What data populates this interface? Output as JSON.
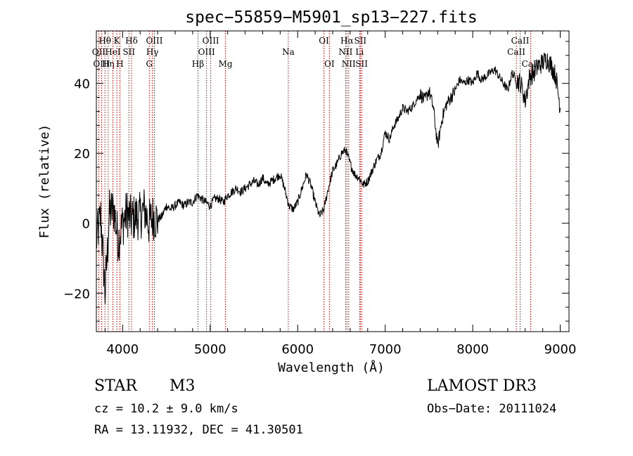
{
  "chart_data": {
    "type": "line",
    "title": "spec−55859−M5901_sp13−227.fits",
    "xlabel": "Wavelength (Å)",
    "ylabel": "Flux (relative)",
    "xlim": [
      3700,
      9100
    ],
    "ylim": [
      -31,
      55
    ],
    "x_ticks": [
      4000,
      5000,
      6000,
      7000,
      8000,
      9000
    ],
    "x_tick_labels": [
      "4000",
      "5000",
      "6000",
      "7000",
      "8000",
      "9000"
    ],
    "y_ticks": [
      -20,
      0,
      20,
      40
    ],
    "y_tick_labels": [
      "−20",
      "0",
      "20",
      "40"
    ],
    "x_minor_step": 200,
    "y_minor_step": 4,
    "series": [
      {
        "name": "spectrum",
        "color": "#000000",
        "x": [
          3700,
          3750,
          3800,
          3850,
          3900,
          3950,
          4000,
          4050,
          4100,
          4150,
          4200,
          4250,
          4300,
          4350,
          4400,
          4450,
          4500,
          4550,
          4600,
          4650,
          4700,
          4750,
          4800,
          4850,
          4900,
          4950,
          5000,
          5050,
          5100,
          5150,
          5200,
          5250,
          5300,
          5350,
          5400,
          5450,
          5500,
          5550,
          5600,
          5650,
          5700,
          5750,
          5800,
          5850,
          5900,
          5950,
          6000,
          6050,
          6100,
          6150,
          6200,
          6250,
          6300,
          6350,
          6400,
          6450,
          6500,
          6550,
          6600,
          6650,
          6700,
          6750,
          6800,
          6850,
          6900,
          6950,
          7000,
          7050,
          7100,
          7150,
          7200,
          7250,
          7300,
          7350,
          7400,
          7450,
          7500,
          7550,
          7600,
          7650,
          7700,
          7750,
          7800,
          7850,
          7900,
          7950,
          8000,
          8050,
          8100,
          8150,
          8200,
          8250,
          8300,
          8350,
          8400,
          8450,
          8500,
          8550,
          8600,
          8650,
          8700,
          8750,
          8800,
          8850,
          8900,
          8950,
          9000
        ],
        "y": [
          -5,
          2,
          -20,
          3,
          4,
          -5,
          0,
          3,
          1,
          2,
          2,
          4,
          0,
          2,
          1,
          2,
          5,
          4,
          5,
          6,
          5,
          6,
          6,
          8,
          7,
          6,
          5,
          7,
          7,
          6,
          8,
          9,
          10,
          9,
          10,
          11,
          12,
          11,
          13,
          11,
          12,
          13,
          14,
          10,
          5,
          4,
          6,
          10,
          14,
          11,
          6,
          2,
          4,
          10,
          15,
          17,
          20,
          21,
          17,
          14,
          13,
          11,
          12,
          15,
          18,
          20,
          26,
          24,
          28,
          30,
          33,
          32,
          33,
          35,
          37,
          35,
          38,
          33,
          22,
          30,
          34,
          36,
          38,
          41,
          40,
          41,
          40,
          43,
          41,
          42,
          43,
          44,
          42,
          40,
          38,
          43,
          41,
          40,
          35,
          42,
          43,
          45,
          46,
          47,
          45,
          42,
          33
        ],
        "noise_ranges": [
          [
            3700,
            4400,
            7
          ],
          [
            7400,
            7800,
            2
          ],
          [
            8500,
            9000,
            3
          ]
        ]
      }
    ],
    "lines": [
      {
        "name": "Hθ",
        "x": 3798,
        "row": 1
      },
      {
        "name": "OII",
        "x": 3727,
        "row": 2
      },
      {
        "name": "OIII",
        "x": 3760,
        "row": 3
      },
      {
        "name": "Hη",
        "x": 3835,
        "row": 3
      },
      {
        "name": "HeI",
        "x": 3889,
        "row": 2
      },
      {
        "name": "K",
        "x": 3934,
        "row": 1
      },
      {
        "name": "SII",
        "x": 4072,
        "row": 2
      },
      {
        "name": "H",
        "x": 3969,
        "row": 3
      },
      {
        "name": "Hδ",
        "x": 4102,
        "row": 1
      },
      {
        "name": "OIII",
        "x": 4363,
        "row": 1
      },
      {
        "name": "Hγ",
        "x": 4340,
        "row": 2
      },
      {
        "name": "G",
        "x": 4305,
        "row": 3
      },
      {
        "name": "OIII",
        "x": 5007,
        "row": 1
      },
      {
        "name": "OIII",
        "x": 4959,
        "row": 2
      },
      {
        "name": "Hβ",
        "x": 4861,
        "row": 3
      },
      {
        "name": "Mg",
        "x": 5175,
        "row": 3
      },
      {
        "name": "Na",
        "x": 5893,
        "row": 2
      },
      {
        "name": "OI",
        "x": 6300,
        "row": 1
      },
      {
        "name": "OI",
        "x": 6363,
        "row": 3
      },
      {
        "name": "Hα",
        "x": 6563,
        "row": 1
      },
      {
        "name": "NII",
        "x": 6548,
        "row": 2
      },
      {
        "name": "NII",
        "x": 6583,
        "row": 3
      },
      {
        "name": "SII",
        "x": 6716,
        "row": 1
      },
      {
        "name": "Li",
        "x": 6708,
        "row": 2
      },
      {
        "name": "SII",
        "x": 6731,
        "row": 3
      },
      {
        "name": "CaII",
        "x": 8542,
        "row": 1
      },
      {
        "name": "CaII",
        "x": 8498,
        "row": 2
      },
      {
        "name": "CaII",
        "x": 8662,
        "row": 3
      }
    ],
    "line_color": "#c00000"
  },
  "info": {
    "class_label": "STAR",
    "subclass_label": "M3",
    "survey_label": "LAMOST DR3",
    "cz_text": "cz = 10.2 ± 9.0 km/s",
    "obs_date_text": "Obs−Date: 20111024",
    "radec_text": "RA =  13.11932, DEC =  41.30501"
  }
}
